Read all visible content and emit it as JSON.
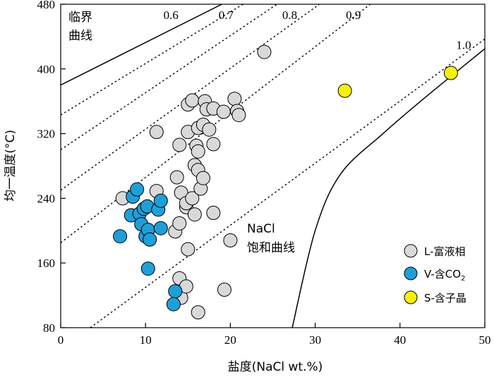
{
  "colors": {
    "L": "#d9d9d9",
    "V": "#1f9fd8",
    "S": "#f7f00a",
    "stroke": "#000000"
  },
  "chart_data": {
    "type": "scatter",
    "title": "",
    "xlabel": "盐度(NaCl wt.%)",
    "ylabel": "均一温度(°C)",
    "xlim": [
      0,
      50
    ],
    "ylim": [
      80,
      480
    ],
    "xticks": [
      0,
      10,
      20,
      30,
      40,
      50
    ],
    "yticks": [
      80,
      160,
      240,
      320,
      400,
      480
    ],
    "grid": false,
    "legend_position": "bottom-right",
    "annotations": {
      "critical_curve": [
        "临界",
        "曲线"
      ],
      "nacl_curve": [
        "NaCl",
        "饱和曲线"
      ],
      "density_labels": [
        {
          "label": "0.6",
          "x": 13.0,
          "y": 467
        },
        {
          "label": "0.7",
          "x": 19.5,
          "y": 467
        },
        {
          "label": "0.8",
          "x": 27.0,
          "y": 467
        },
        {
          "label": "0.9",
          "x": 34.5,
          "y": 467
        },
        {
          "label": "1.0",
          "x": 47.5,
          "y": 430
        }
      ]
    },
    "curves": {
      "critical": [
        [
          0,
          380
        ],
        [
          19,
          480
        ]
      ],
      "saturation": [
        [
          27.3,
          80
        ],
        [
          30,
          200
        ],
        [
          33,
          270
        ],
        [
          38,
          320
        ],
        [
          43,
          365
        ],
        [
          50,
          425
        ]
      ],
      "density": [
        {
          "label": "0.6",
          "points": [
            [
              0,
              343
            ],
            [
              21.5,
              480
            ]
          ]
        },
        {
          "label": "0.7",
          "points": [
            [
              0,
              300
            ],
            [
              25.5,
              480
            ]
          ]
        },
        {
          "label": "0.8",
          "points": [
            [
              0,
              250
            ],
            [
              30.5,
              480
            ]
          ]
        },
        {
          "label": "0.9",
          "points": [
            [
              0,
              185
            ],
            [
              36.5,
              480
            ]
          ]
        },
        {
          "label": "1.0",
          "points": [
            [
              3.5,
              80
            ],
            [
              50,
              437
            ]
          ]
        }
      ]
    },
    "series": [
      {
        "name": "L-富液相",
        "color": "#d9d9d9",
        "points": [
          [
            7.3,
            240
          ],
          [
            11.3,
            249
          ],
          [
            11.3,
            322
          ],
          [
            13.5,
            199
          ],
          [
            13.7,
            266
          ],
          [
            14.0,
            209
          ],
          [
            14.2,
            247
          ],
          [
            14.0,
            306
          ],
          [
            14.8,
            229
          ],
          [
            15.0,
            356
          ],
          [
            15.5,
            361
          ],
          [
            14.8,
            234
          ],
          [
            15.0,
            322
          ],
          [
            15.5,
            240
          ],
          [
            15.8,
            220
          ],
          [
            15.8,
            281
          ],
          [
            16.2,
            275
          ],
          [
            16.0,
            305
          ],
          [
            16.2,
            298
          ],
          [
            16.2,
            327
          ],
          [
            16.5,
            252
          ],
          [
            16.8,
            265
          ],
          [
            16.8,
            331
          ],
          [
            17.0,
            360
          ],
          [
            17.2,
            350
          ],
          [
            17.5,
            325
          ],
          [
            18.0,
            351
          ],
          [
            18.0,
            307
          ],
          [
            18.0,
            222
          ],
          [
            19.2,
            347
          ],
          [
            19.3,
            127
          ],
          [
            20.0,
            188
          ],
          [
            20.5,
            363
          ],
          [
            20.8,
            348
          ],
          [
            21.0,
            343
          ],
          [
            24.0,
            421
          ],
          [
            14.0,
            141
          ],
          [
            14.2,
            117
          ],
          [
            14.8,
            131
          ],
          [
            15.0,
            177
          ],
          [
            16.2,
            99
          ]
        ]
      },
      {
        "name": "V-含CO₂",
        "color": "#1f9fd8",
        "points": [
          [
            7.0,
            193
          ],
          [
            8.3,
            219
          ],
          [
            8.5,
            242
          ],
          [
            9.0,
            251
          ],
          [
            9.3,
            221
          ],
          [
            9.5,
            208
          ],
          [
            9.8,
            227
          ],
          [
            10.2,
            230
          ],
          [
            10.0,
            193
          ],
          [
            10.3,
            153
          ],
          [
            10.3,
            201
          ],
          [
            10.5,
            189
          ],
          [
            11.5,
            226
          ],
          [
            11.8,
            237
          ],
          [
            11.8,
            203
          ],
          [
            13.5,
            125
          ],
          [
            13.3,
            109
          ]
        ]
      },
      {
        "name": "S-含子晶",
        "color": "#f7f00a",
        "points": [
          [
            33.5,
            373
          ],
          [
            46.0,
            395
          ]
        ]
      }
    ]
  },
  "legend": {
    "items": [
      {
        "label": "L-富液相",
        "color": "#d9d9d9"
      },
      {
        "label": "V-含CO",
        "sub": "2",
        "color": "#1f9fd8"
      },
      {
        "label": "S-含子晶",
        "color": "#f7f00a"
      }
    ]
  }
}
